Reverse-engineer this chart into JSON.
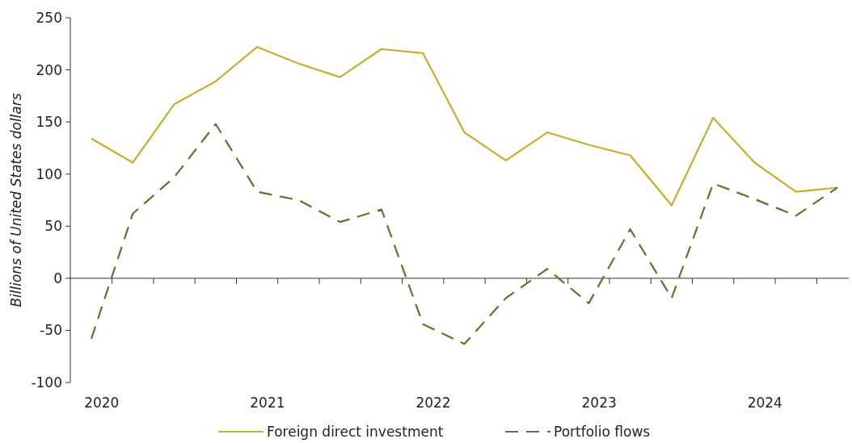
{
  "chart_data": {
    "type": "line",
    "ylabel": "Billions of United States dollars",
    "categories": [
      "2020",
      null,
      null,
      null,
      "2021",
      null,
      null,
      null,
      "2022",
      null,
      null,
      null,
      "2023",
      null,
      null,
      null,
      "2024",
      null,
      null
    ],
    "series": [
      {
        "name": "Foreign direct investment",
        "color": "#c8ae2c",
        "line_style": "solid",
        "values": [
          134,
          111,
          167,
          189,
          222,
          206,
          193,
          220,
          216,
          140,
          113,
          140,
          128,
          118,
          70,
          154,
          111,
          83,
          87
        ]
      },
      {
        "name": "Portfolio flows",
        "color": "#6b6d2f",
        "line_style": "dashed",
        "values": [
          -58,
          62,
          97,
          148,
          83,
          75,
          54,
          66,
          -44,
          -63,
          -19,
          9,
          -24,
          47,
          -19,
          91,
          76,
          60,
          87
        ]
      }
    ],
    "ylim": [
      -100,
      250
    ],
    "yticks": [
      -100,
      -50,
      0,
      50,
      100,
      150,
      200,
      250
    ],
    "legend": "bottom",
    "marker": "none"
  }
}
